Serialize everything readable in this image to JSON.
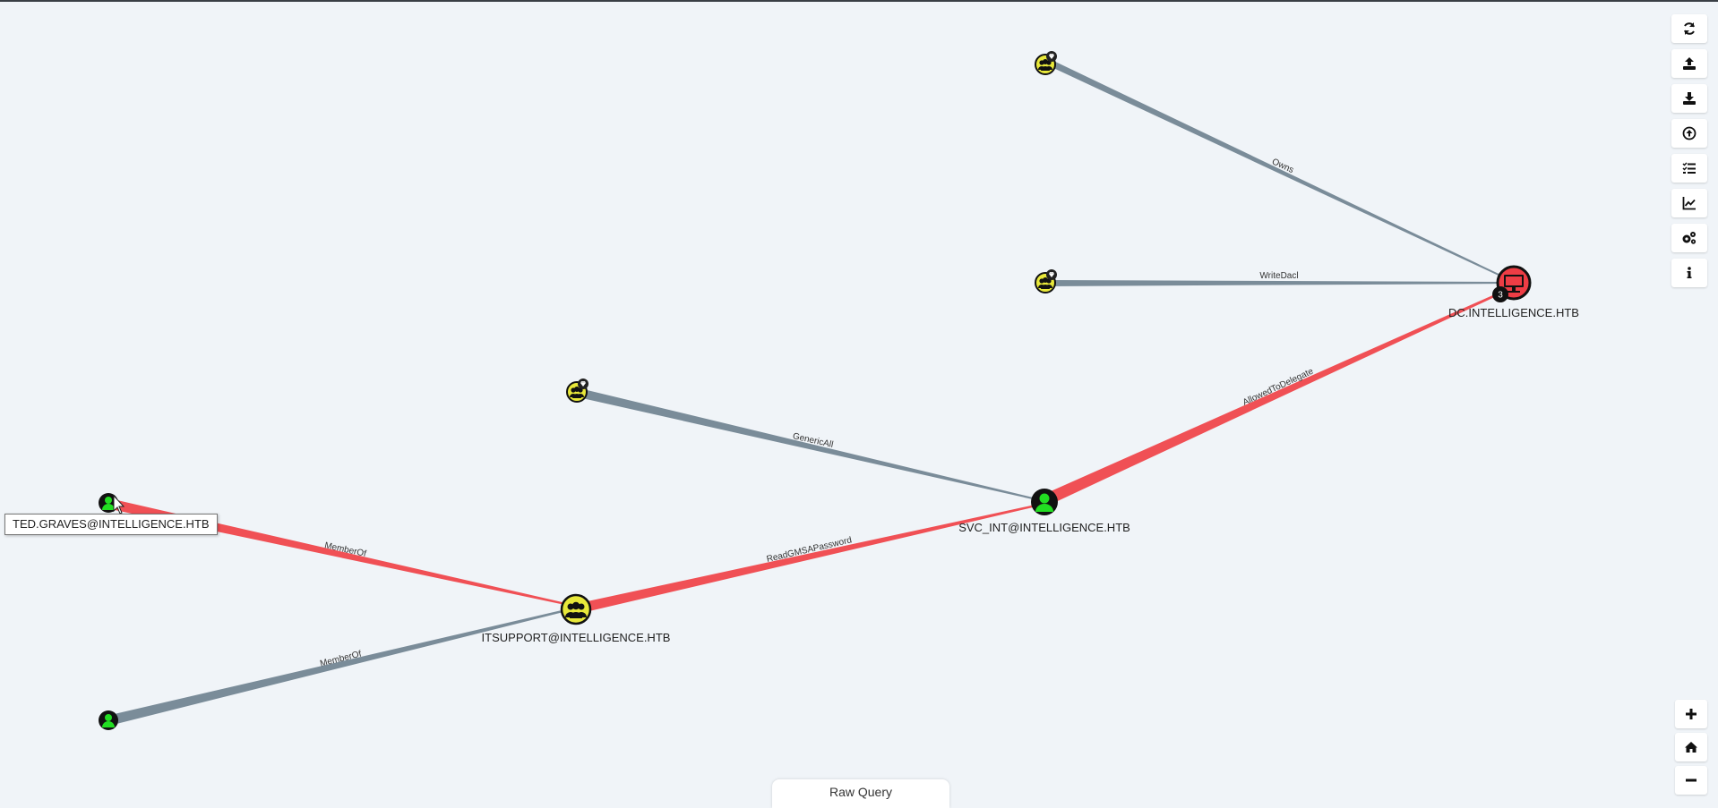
{
  "graph": {
    "edges": [
      {
        "label": "Owns",
        "type": "default"
      },
      {
        "label": "WriteDacl",
        "type": "default"
      },
      {
        "label": "GenericAll",
        "type": "default"
      },
      {
        "label": "AllowedToDelegate",
        "type": "highlight"
      },
      {
        "label": "ReadGMSAPassword",
        "type": "highlight"
      },
      {
        "label": "MemberOf",
        "type": "highlight"
      },
      {
        "label": "MemberOf",
        "type": "default"
      }
    ],
    "nodes": [
      {
        "label": "",
        "kind": "group-high-value"
      },
      {
        "label": "",
        "kind": "group-high-value"
      },
      {
        "label": "DC.INTELLIGENCE.HTB",
        "kind": "computer",
        "badge": "3"
      },
      {
        "label": "",
        "kind": "group-high-value"
      },
      {
        "label": "SVC_INT@INTELLIGENCE.HTB",
        "kind": "user"
      },
      {
        "label": "ITSUPPORT@INTELLIGENCE.HTB",
        "kind": "group"
      },
      {
        "label": "",
        "kind": "user"
      },
      {
        "label": "",
        "kind": "user"
      }
    ],
    "tooltip": "TED.GRAVES@INTELLIGENCE.HTB"
  },
  "toolbar": {
    "icons": [
      "refresh-icon",
      "upload-icon",
      "download-icon",
      "circle-up-icon",
      "list-check-icon",
      "chart-icon",
      "settings-icon",
      "info-icon"
    ]
  },
  "zoom": {
    "icons": [
      "zoom-in-icon",
      "home-icon",
      "zoom-out-icon"
    ]
  },
  "raw_query": {
    "label": "Raw Query"
  },
  "colors": {
    "edge_default": "#7a8c99",
    "edge_highlight": "#f05055",
    "user_green": "#22dd22",
    "group_yellow": "#e8e83a",
    "computer_red": "#ee3d45",
    "node_outline": "#111111"
  }
}
